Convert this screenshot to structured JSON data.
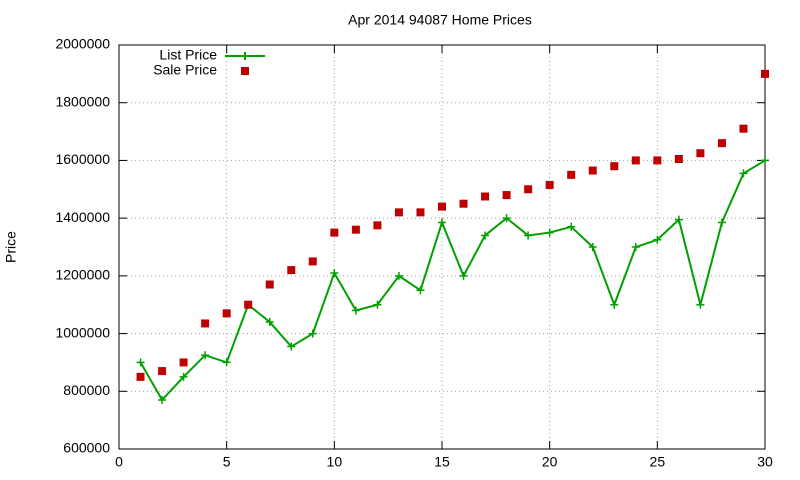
{
  "chart_data": {
    "type": "line",
    "title": "Apr 2014 94087 Home Prices",
    "y_label": "Price",
    "x": [
      1,
      2,
      3,
      4,
      5,
      6,
      7,
      8,
      9,
      10,
      11,
      12,
      13,
      14,
      15,
      16,
      17,
      18,
      19,
      20,
      21,
      22,
      23,
      24,
      25,
      26,
      27,
      28,
      29,
      30
    ],
    "series": [
      {
        "name": "List Price",
        "color": "#00a000",
        "style": "linespoints",
        "values": [
          900000,
          770000,
          850000,
          925000,
          900000,
          1100000,
          1040000,
          955000,
          1000000,
          1210000,
          1080000,
          1100000,
          1200000,
          1150000,
          1385000,
          1200000,
          1340000,
          1400000,
          1340000,
          1350000,
          1370000,
          1300000,
          1100000,
          1300000,
          1325000,
          1395000,
          1100000,
          1385000,
          1555000,
          1600000
        ]
      },
      {
        "name": "Sale Price",
        "color": "#c00000",
        "style": "points",
        "values": [
          850000,
          870000,
          900000,
          1035000,
          1070000,
          1100000,
          1170000,
          1220000,
          1250000,
          1350000,
          1360000,
          1375000,
          1420000,
          1420000,
          1440000,
          1450000,
          1475000,
          1480000,
          1500000,
          1515000,
          1550000,
          1565000,
          1580000,
          1600000,
          1600000,
          1605000,
          1625000,
          1660000,
          1710000,
          1900000
        ]
      }
    ],
    "xlim": [
      0,
      30
    ],
    "xticks": [
      0,
      5,
      10,
      15,
      20,
      25,
      30
    ],
    "ylim": [
      600000,
      2000000
    ],
    "yticks": [
      600000,
      800000,
      1000000,
      1200000,
      1400000,
      1600000,
      1800000,
      2000000
    ],
    "grid": true,
    "legend": "top-left"
  }
}
